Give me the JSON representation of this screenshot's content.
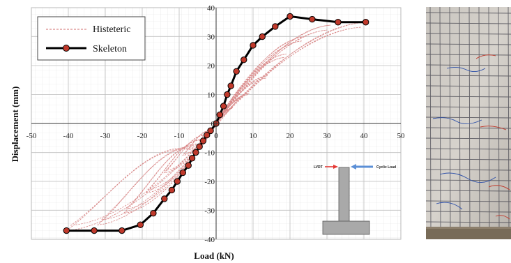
{
  "chart_data": {
    "type": "line",
    "title": "",
    "xlabel": "Load (kN)",
    "ylabel": "Displacement (mm)",
    "xlim": [
      -50,
      50
    ],
    "ylim": [
      -40,
      40
    ],
    "xticks": [
      -50,
      -40,
      -30,
      -20,
      -10,
      0,
      10,
      20,
      30,
      40,
      50
    ],
    "yticks": [
      -40,
      -30,
      -20,
      -10,
      0,
      10,
      20,
      30,
      40
    ],
    "grid": true,
    "legend_position": "top-left",
    "series": [
      {
        "name": "Histeteric",
        "style": "dashed",
        "color": "#d98a8a",
        "loops": [
          {
            "peak_load": 4.5,
            "peak_disp": 5.5
          },
          {
            "peak_load": 9.0,
            "peak_disp": 10.5
          },
          {
            "peak_load": 14.0,
            "peak_disp": 16.5
          },
          {
            "peak_load": 19.0,
            "peak_disp": 24.0
          },
          {
            "peak_load": 24.0,
            "peak_disp": 30.0
          },
          {
            "peak_load": 31.0,
            "peak_disp": 34.0
          },
          {
            "peak_load": 40.5,
            "peak_disp": 35.0
          }
        ],
        "loops_negative": [
          {
            "peak_load": -4.5,
            "peak_disp": -6.0
          },
          {
            "peak_load": -9.0,
            "peak_disp": -11.0
          },
          {
            "peak_load": -14.0,
            "peak_disp": -17.0
          },
          {
            "peak_load": -19.0,
            "peak_disp": -24.0
          },
          {
            "peak_load": -25.0,
            "peak_disp": -31.0
          },
          {
            "peak_load": -32.0,
            "peak_disp": -35.0
          },
          {
            "peak_load": -40.5,
            "peak_disp": -37.0
          }
        ]
      },
      {
        "name": "Skeleton",
        "style": "solid",
        "color": "#000000",
        "marker_color": "#c0392b",
        "x": [
          -40.5,
          -33.0,
          -25.5,
          -20.5,
          -17.0,
          -14.0,
          -12.0,
          -10.5,
          -9.0,
          -7.5,
          -6.5,
          -5.5,
          -4.5,
          -3.5,
          -2.5,
          -1.5,
          0.0,
          1.0,
          2.0,
          3.0,
          4.0,
          5.5,
          7.5,
          10.0,
          12.5,
          16.0,
          20.0,
          26.0,
          33.0,
          40.5
        ],
        "y": [
          -37.0,
          -37.0,
          -37.0,
          -35.0,
          -31.0,
          -26.0,
          -23.0,
          -20.0,
          -17.0,
          -14.5,
          -12.0,
          -10.0,
          -8.0,
          -6.0,
          -4.0,
          -2.5,
          0.0,
          3.0,
          6.0,
          10.0,
          13.0,
          18.0,
          22.0,
          27.0,
          30.0,
          33.5,
          37.0,
          36.0,
          35.0,
          35.0
        ]
      }
    ]
  },
  "legend": {
    "histeretic_label": "Histeteric",
    "skeleton_label": "Skeleton"
  },
  "inset": {
    "lvdt_label": "LVDT",
    "cyclic_label": "Cyclic Load",
    "lvdt_arrow_color": "#e53935",
    "cyclic_arrow_color": "#5b8fd6",
    "specimen_color": "#a9a9a9"
  },
  "photo": {
    "description_icon": "cracked-wall-photo-icon"
  }
}
